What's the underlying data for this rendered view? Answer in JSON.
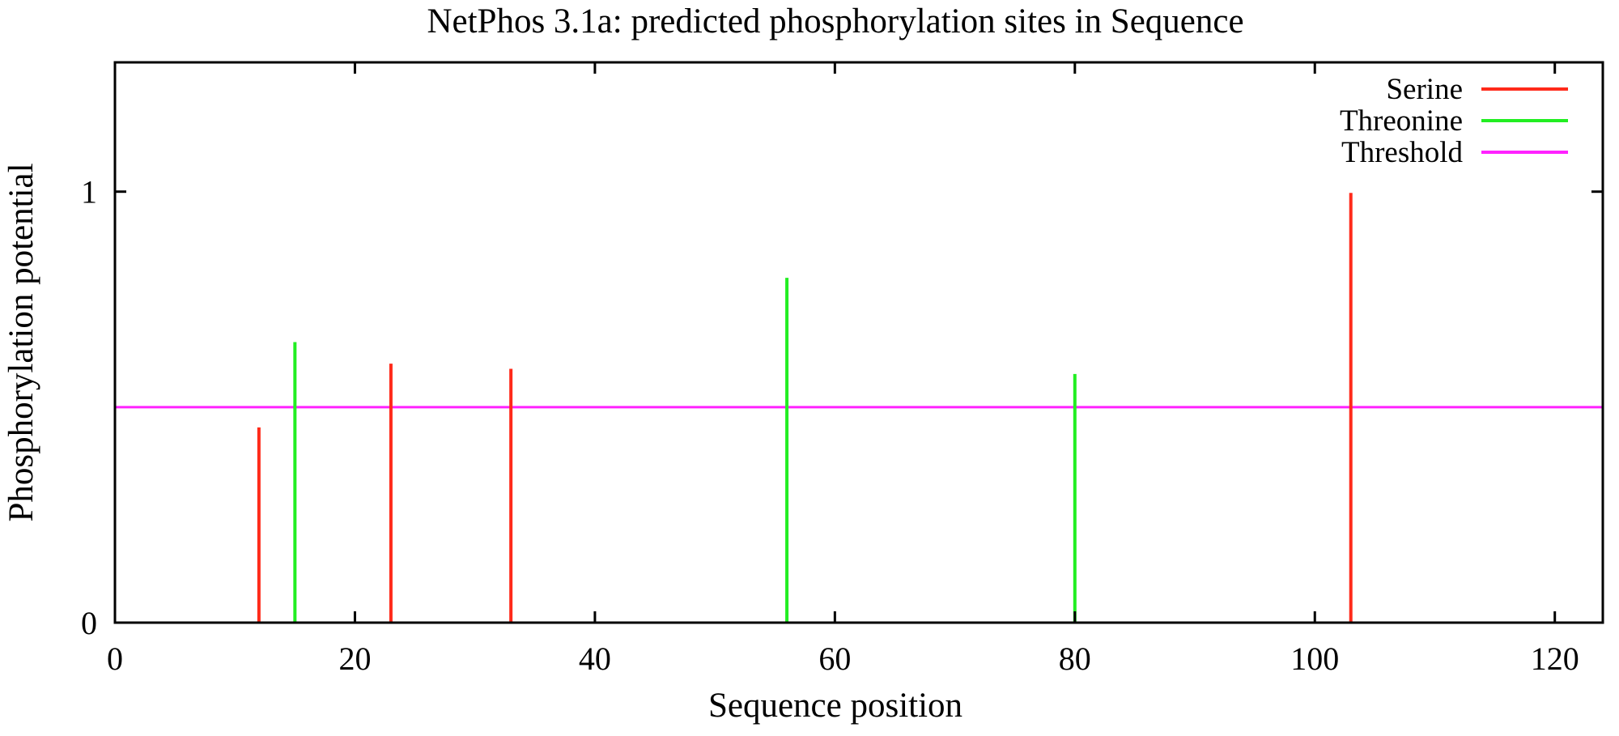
{
  "chart_data": {
    "type": "bar",
    "title": "NetPhos 3.1a: predicted phosphorylation sites in Sequence",
    "xlabel": "Sequence position",
    "ylabel": "Phosphorylation potential",
    "xlim": [
      0,
      124
    ],
    "ylim": [
      0,
      1.3
    ],
    "x_ticks": [
      0,
      20,
      40,
      60,
      80,
      100,
      120
    ],
    "y_ticks": [
      0,
      1
    ],
    "grid": false,
    "legend_position": "top-right",
    "series": [
      {
        "name": "Serine",
        "color": "#ff2a1a",
        "points": [
          {
            "x": 12,
            "y": 0.453
          },
          {
            "x": 23,
            "y": 0.601
          },
          {
            "x": 33,
            "y": 0.589
          },
          {
            "x": 103,
            "y": 0.997
          }
        ]
      },
      {
        "name": "Threonine",
        "color": "#22ee22",
        "points": [
          {
            "x": 15,
            "y": 0.651
          },
          {
            "x": 56,
            "y": 0.8
          },
          {
            "x": 80,
            "y": 0.577
          }
        ]
      }
    ],
    "threshold": {
      "name": "Threshold",
      "color": "#ff22ff",
      "value": 0.5
    }
  }
}
